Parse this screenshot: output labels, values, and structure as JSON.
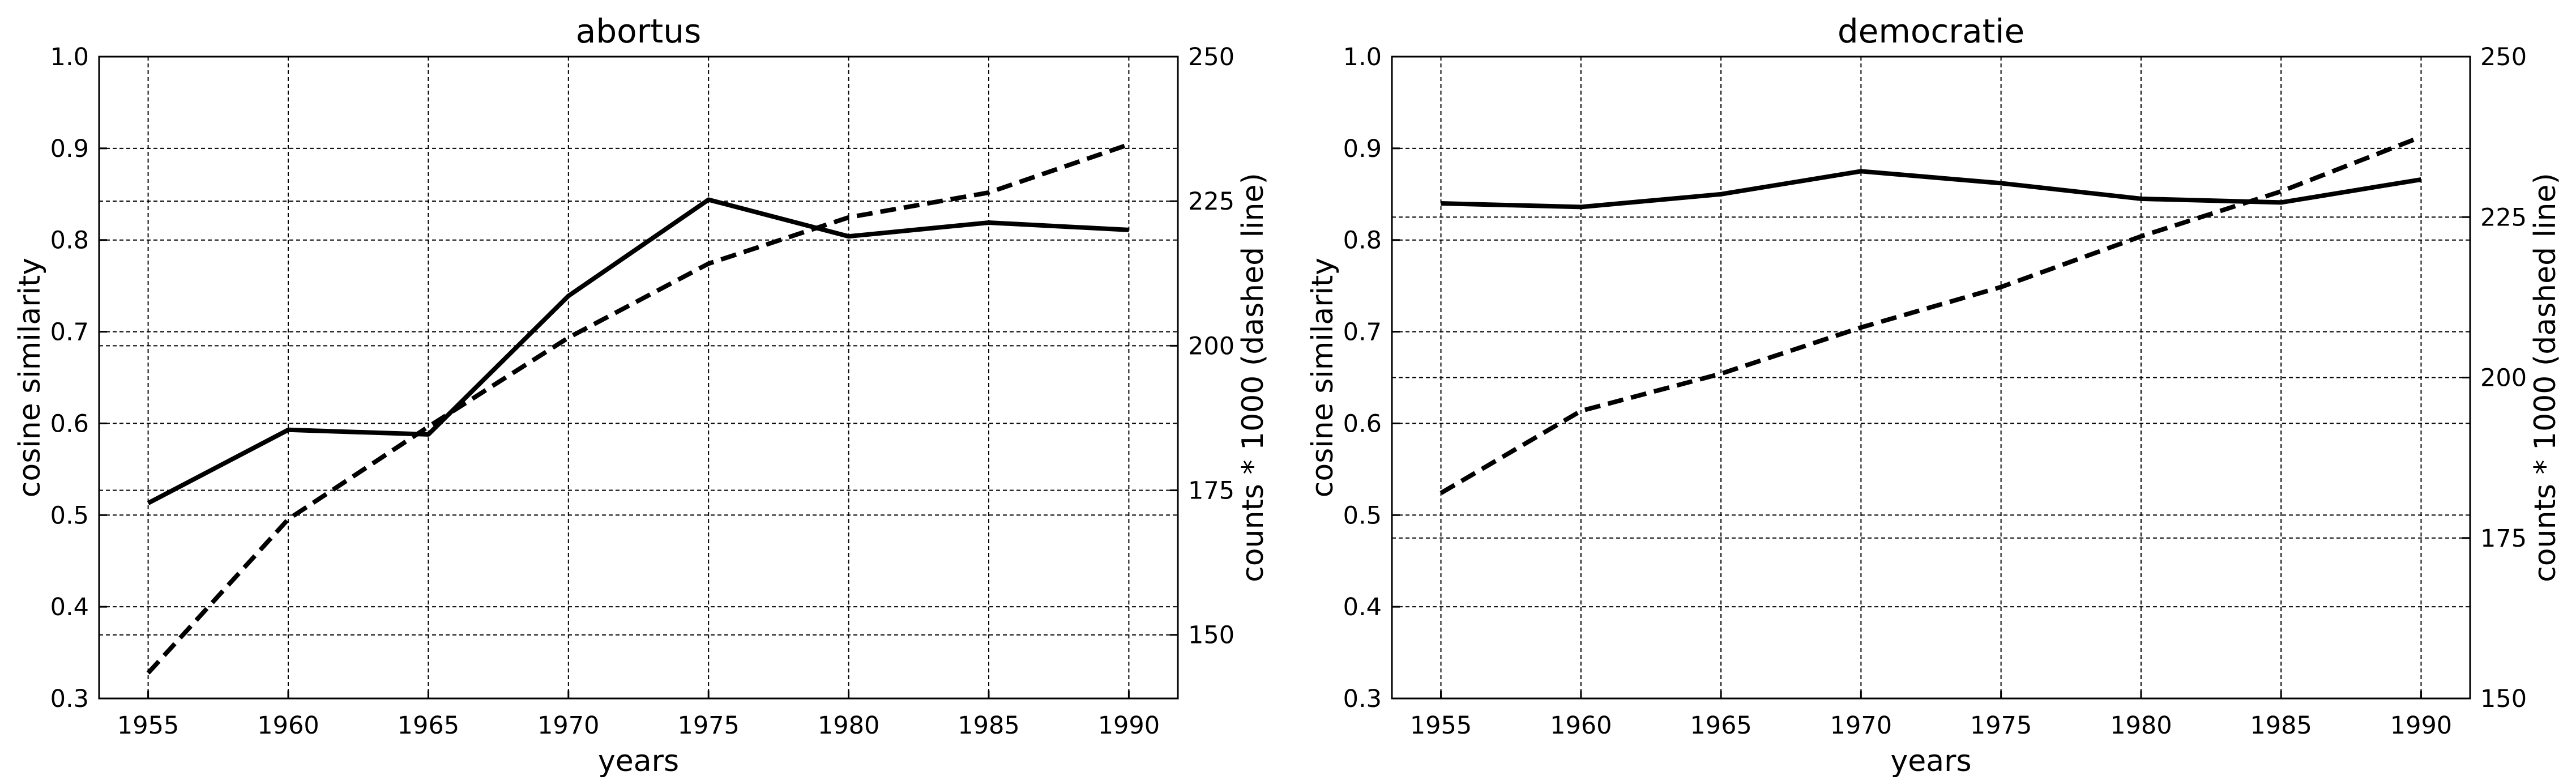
{
  "chart_data": [
    {
      "type": "line",
      "title": "abortus",
      "xlabel": "years",
      "ylabel": "cosine similarity",
      "y2label": "counts * 1000 (dashed line)",
      "x": [
        1955,
        1960,
        1965,
        1970,
        1975,
        1980,
        1985,
        1990
      ],
      "xticks": [
        "1955",
        "1960",
        "1965",
        "1970",
        "1975",
        "1980",
        "1985",
        "1990"
      ],
      "xlim": [
        1953.25,
        1991.75
      ],
      "ylim": [
        0.3,
        1.0
      ],
      "yticks": [
        "0.3",
        "0.4",
        "0.5",
        "0.6",
        "0.7",
        "0.8",
        "0.9",
        "1.0"
      ],
      "y2lim": [
        139,
        250
      ],
      "y2ticks": [
        "150",
        "175",
        "200",
        "225",
        "250"
      ],
      "grid": true,
      "series": [
        {
          "axis": "left",
          "style": "solid",
          "values": [
            0.513,
            0.593,
            0.588,
            0.739,
            0.844,
            0.804,
            0.819,
            0.811
          ]
        },
        {
          "axis": "right",
          "style": "dashed",
          "values": [
            143.4,
            170.0,
            186.0,
            201.4,
            214.2,
            222.2,
            226.5,
            234.8
          ]
        }
      ]
    },
    {
      "type": "line",
      "title": "democratie",
      "xlabel": "years",
      "ylabel": "cosine similarity",
      "y2label": "counts * 1000 (dashed line)",
      "x": [
        1955,
        1960,
        1965,
        1970,
        1975,
        1980,
        1985,
        1990
      ],
      "xticks": [
        "1955",
        "1960",
        "1965",
        "1970",
        "1975",
        "1980",
        "1985",
        "1990"
      ],
      "xlim": [
        1953.25,
        1991.75
      ],
      "ylim": [
        0.3,
        1.0
      ],
      "yticks": [
        "0.3",
        "0.4",
        "0.5",
        "0.6",
        "0.7",
        "0.8",
        "0.9",
        "1.0"
      ],
      "y2lim": [
        150,
        250
      ],
      "y2ticks": [
        "150",
        "175",
        "200",
        "225",
        "250"
      ],
      "grid": true,
      "series": [
        {
          "axis": "left",
          "style": "solid",
          "values": [
            0.84,
            0.836,
            0.85,
            0.875,
            0.862,
            0.845,
            0.841,
            0.866
          ]
        },
        {
          "axis": "right",
          "style": "dashed",
          "values": [
            182.0,
            194.8,
            200.6,
            207.8,
            214.1,
            222.0,
            229.0,
            237.5
          ]
        }
      ]
    }
  ]
}
